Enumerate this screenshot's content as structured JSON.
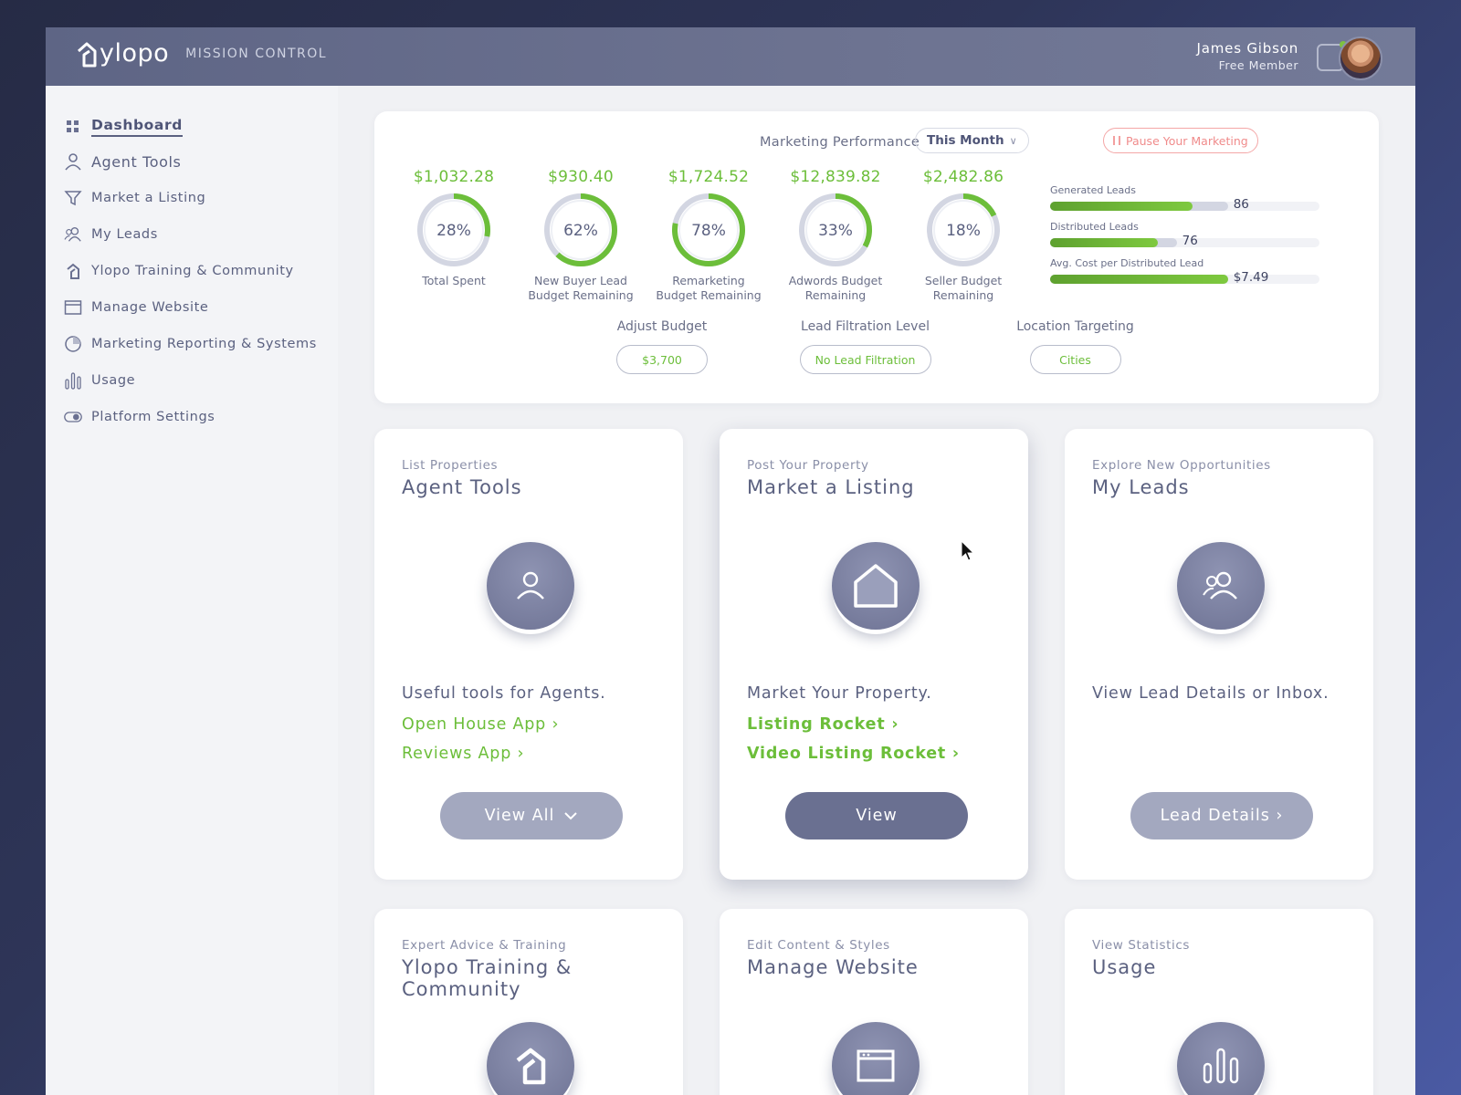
{
  "header": {
    "brand": "ylopo",
    "subtitle": "MISSION CONTROL",
    "user_name": "James Gibson",
    "user_role": "Free Member"
  },
  "sidebar": {
    "items": [
      {
        "label": "Dashboard",
        "icon": "grid-icon",
        "active": true
      },
      {
        "label": "Agent Tools",
        "icon": "user-icon"
      },
      {
        "label": "Market a Listing",
        "icon": "funnel-icon"
      },
      {
        "label": "My Leads",
        "icon": "users-icon"
      },
      {
        "label": "Ylopo Training & Community",
        "icon": "ylopo-logo-icon"
      },
      {
        "label": "Manage Website",
        "icon": "browser-window-icon"
      },
      {
        "label": "Marketing Reporting & Systems",
        "icon": "pie-chart-icon"
      },
      {
        "label": "Usage",
        "icon": "bar-chart-icon"
      },
      {
        "label": "Platform Settings",
        "icon": "toggle-icon"
      }
    ]
  },
  "performance": {
    "title": "Marketing Performance",
    "period": "This Month",
    "pause_label": "Pause Your Marketing",
    "gauges": [
      {
        "amount": "$1,032.28",
        "percent": 28,
        "label": "28%",
        "caption": [
          "Total Spent",
          ""
        ]
      },
      {
        "amount": "$930.40",
        "percent": 62,
        "label": "62%",
        "caption": [
          "New Buyer Lead",
          "Budget Remaining"
        ]
      },
      {
        "amount": "$1,724.52",
        "percent": 78,
        "label": "78%",
        "caption": [
          "Remarketing",
          "Budget Remaining"
        ]
      },
      {
        "amount": "$12,839.82",
        "percent": 33,
        "label": "33%",
        "caption": [
          "Adwords Budget",
          "Remaining"
        ]
      },
      {
        "amount": "$2,482.86",
        "percent": 18,
        "label": "18%",
        "caption": [
          "Seller Budget",
          "Remaining"
        ]
      }
    ],
    "bars": [
      {
        "label": "Generated Leads",
        "value": "86",
        "fill": 0.53,
        "total": 0.66
      },
      {
        "label": "Distributed Leads",
        "value": "76",
        "fill": 0.4,
        "total": 0.47
      },
      {
        "label": "Avg. Cost per Distributed Lead",
        "value": "$7.49",
        "fill": 0.66,
        "total": 0.66
      }
    ],
    "controls": [
      {
        "label": "Adjust Budget",
        "value": "$3,700"
      },
      {
        "label": "Lead Filtration Level",
        "value": "No Lead Filtration"
      },
      {
        "label": "Location Targeting",
        "value": "Cities"
      }
    ]
  },
  "tiles": [
    {
      "eyebrow": "List Properties",
      "title": "Agent Tools",
      "icon": "user-icon",
      "desc": "Useful tools for Agents.",
      "links": [
        "Open House App ›",
        "Reviews App ›"
      ],
      "button": "View All",
      "button_icon": "chevron-down-icon"
    },
    {
      "eyebrow": "Post Your Property",
      "title": "Market a Listing",
      "icon": "house-icon",
      "desc": "Market Your Property.",
      "links": [
        "Listing Rocket ›",
        "Video Listing Rocket ›"
      ],
      "button": "View"
    },
    {
      "eyebrow": "Explore New Opportunities",
      "title": "My Leads",
      "icon": "users-icon",
      "desc": "View Lead Details or Inbox.",
      "links": [],
      "button": "Lead Details ›"
    },
    {
      "eyebrow": "Expert Advice & Training",
      "title": "Ylopo Training & Community",
      "icon": "ylopo-logo-icon"
    },
    {
      "eyebrow": "Edit Content & Styles",
      "title": "Manage Website",
      "icon": "browser-window-icon"
    },
    {
      "eyebrow": "View Statistics",
      "title": "Usage",
      "icon": "bar-chart-icon"
    }
  ],
  "colors": {
    "accent_green": "#6cbe3a",
    "header_bg": "#6d7391",
    "text_primary": "#5b6180",
    "pause_red": "#f08b8b"
  }
}
